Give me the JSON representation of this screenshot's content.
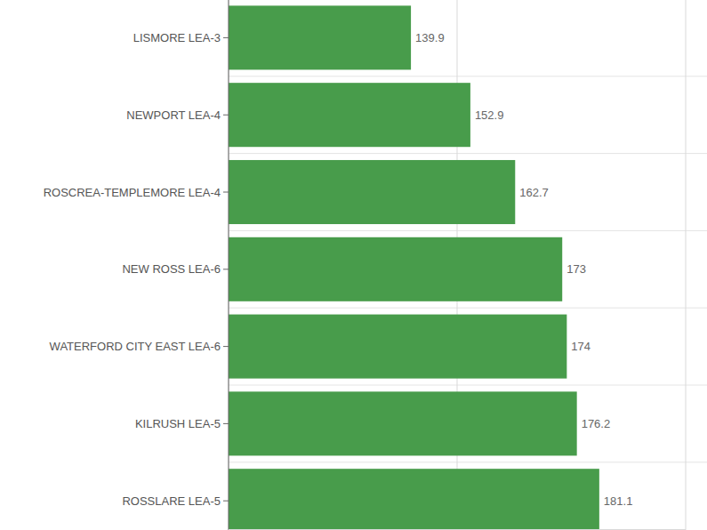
{
  "chart_data": {
    "type": "bar",
    "orientation": "horizontal",
    "categories": [
      "LISMORE LEA-3",
      "NEWPORT LEA-4",
      "ROSCREA-TEMPLEMORE LEA-4",
      "NEW ROSS LEA-6",
      "WATERFORD CITY EAST LEA-6",
      "KILRUSH LEA-5",
      "ROSSLARE LEA-5"
    ],
    "values": [
      139.9,
      152.9,
      162.7,
      173,
      174,
      176.2,
      181.1
    ],
    "color": "#489c4b",
    "xlim": [
      100,
      200
    ],
    "xticks": [
      100,
      150,
      200
    ],
    "grid": true,
    "data_labels": true,
    "tick_labels": "y"
  }
}
